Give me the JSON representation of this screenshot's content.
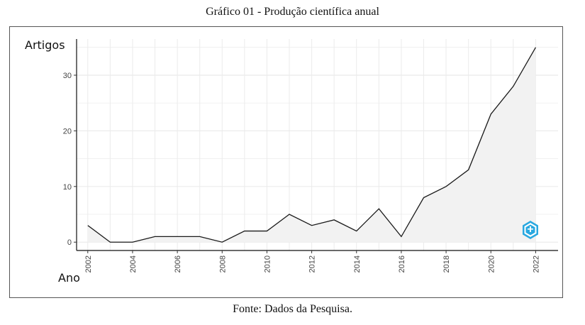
{
  "title": "Gráfico 01 - Produção científica anual",
  "source": "Fonte: Dados da Pesquisa.",
  "chart_data": {
    "type": "area",
    "title": "Gráfico 01 - Produção científica anual",
    "xlabel": "Ano",
    "ylabel": "Artigos",
    "x": [
      2002,
      2003,
      2004,
      2005,
      2006,
      2007,
      2008,
      2009,
      2010,
      2011,
      2012,
      2013,
      2014,
      2015,
      2016,
      2017,
      2018,
      2019,
      2020,
      2021,
      2022
    ],
    "values": [
      3,
      0,
      0,
      1,
      1,
      1,
      0,
      2,
      2,
      5,
      3,
      4,
      2,
      6,
      1,
      8,
      10,
      13,
      23,
      28,
      35
    ],
    "x_ticks": [
      "2002",
      "2004",
      "2006",
      "2008",
      "2010",
      "2012",
      "2014",
      "2016",
      "2018",
      "2020",
      "2022"
    ],
    "y_ticks": [
      "0",
      "10",
      "20",
      "30"
    ],
    "xlim": [
      2001.5,
      2023
    ],
    "ylim": [
      -1.5,
      36.5
    ],
    "grid": true,
    "line_color": "#1a1a1a",
    "fill_color": "#f2f2f2",
    "grid_color": "#ebebeb",
    "badge_color": "#29a8e0"
  }
}
